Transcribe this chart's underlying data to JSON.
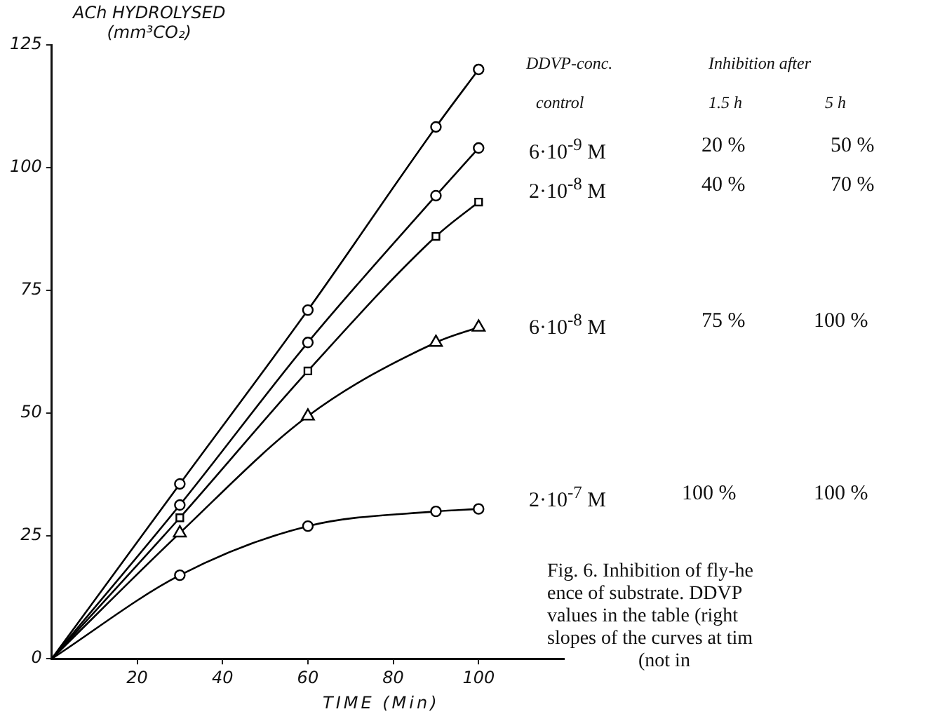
{
  "chart_data": {
    "type": "line",
    "ylabel": "ACh HYDROLYSED\n(mm³CO₂)",
    "xlabel": "TIME (Min)",
    "xlim": [
      0,
      120
    ],
    "xticks": [
      20,
      40,
      60,
      80,
      100
    ],
    "ylim": [
      0,
      125
    ],
    "yticks": [
      0,
      25,
      50,
      75,
      100,
      125
    ],
    "grid": false,
    "legend": false,
    "line_style": "solid",
    "series": [
      {
        "name": "control",
        "color": "#000000",
        "marker": "circle",
        "x": [
          0,
          30,
          60,
          90,
          100
        ],
        "values": [
          0,
          35.6,
          71,
          108.3,
          120
        ]
      },
      {
        "name": "6·10$^{-9}$ M",
        "color": "#000000",
        "marker": "circle",
        "x": [
          0,
          30,
          60,
          90,
          100
        ],
        "values": [
          0,
          31.3,
          64.4,
          94.3,
          104
        ]
      },
      {
        "name": "2·10$^{-8}$ M",
        "color": "#000000",
        "marker": "square",
        "x": [
          0,
          30,
          60,
          90,
          100
        ],
        "values": [
          0,
          28.7,
          58.6,
          86,
          93
        ]
      },
      {
        "name": "6·10$^{-8}$ M",
        "color": "#000000",
        "marker": "triangle",
        "x": [
          0,
          30,
          60,
          90,
          100
        ],
        "values": [
          0,
          25.6,
          49.4,
          64.4,
          67.5
        ]
      },
      {
        "name": "2·10$^{-7}$ M",
        "color": "#000000",
        "marker": "circle",
        "x": [
          0,
          30,
          60,
          90,
          100
        ],
        "values": [
          0,
          17,
          27,
          30,
          30.5
        ]
      }
    ],
    "annotations": [
      "DDVP-conc.",
      "Inhibition after",
      "1.5 h",
      "5 h",
      "20 %",
      "50 %",
      "40 %",
      "70 %",
      "75 %",
      "100 %",
      "100 %",
      "100 %",
      "Fig. 6. Inhibition of fly-he\nence of substrate. DDVP\nvalues in the table (right\nslopes of the curves at tim\n(not in"
    ]
  }
}
